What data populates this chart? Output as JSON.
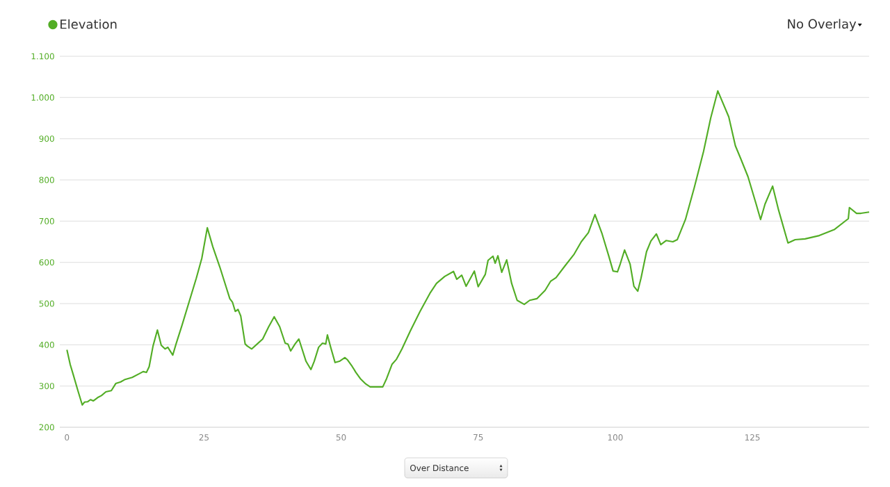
{
  "chart_data": {
    "type": "line",
    "x": [
      0,
      0.6,
      1.1,
      2.0,
      2.8,
      3.2,
      3.8,
      4.3,
      4.8,
      5.6,
      6.3,
      7.1,
      8.1,
      8.9,
      9.8,
      10.6,
      11.9,
      13.2,
      13.9,
      14.5,
      15.0,
      15.7,
      16.5,
      17.2,
      17.9,
      18.4,
      19.3,
      19.9,
      21.0,
      22.3,
      23.6,
      24.6,
      25.6,
      26.6,
      27.9,
      28.9,
      29.7,
      30.2,
      30.7,
      31.2,
      31.7,
      32.5,
      32.9,
      33.7,
      34.7,
      35.7,
      36.8,
      37.8,
      38.8,
      39.8,
      40.3,
      40.8,
      41.6,
      42.3,
      43.6,
      44.5,
      45.1,
      45.9,
      46.6,
      47.2,
      47.5,
      48.1,
      48.9,
      49.7,
      50.7,
      51.2,
      52.0,
      52.7,
      53.5,
      54.5,
      55.3,
      56.3,
      57.6,
      58.3,
      59.3,
      60.1,
      61.1,
      62.6,
      64.4,
      66.2,
      67.4,
      68.9,
      70.5,
      71.1,
      72.0,
      72.8,
      74.3,
      75.0,
      76.3,
      76.8,
      77.7,
      78.1,
      78.6,
      79.3,
      80.2,
      81.1,
      82.1,
      83.4,
      84.4,
      85.7,
      87.2,
      88.2,
      89.2,
      90.8,
      92.5,
      93.8,
      95.1,
      96.3,
      97.6,
      98.8,
      99.6,
      100.4,
      100.9,
      101.7,
      102.2,
      102.7,
      103.4,
      104.1,
      104.7,
      105.7,
      106.5,
      107.5,
      108.3,
      109.3,
      110.5,
      111.3,
      112.8,
      114.4,
      116.1,
      117.4,
      118.7,
      120.7,
      121.9,
      122.9,
      124.2,
      125.7,
      126.5,
      127.3,
      128.7,
      129.8,
      131.5,
      132.8,
      134.6,
      137.2,
      140.0,
      142.5,
      142.7,
      144.0,
      144.8,
      146.3
    ],
    "series": [
      {
        "name": "Elevation",
        "color": "#52ad25",
        "values": [
          388,
          352,
          330,
          289,
          254,
          261,
          262,
          267,
          264,
          272,
          277,
          286,
          289,
          306,
          310,
          316,
          321,
          330,
          335,
          333,
          347,
          397,
          436,
          399,
          390,
          394,
          375,
          402,
          448,
          505,
          562,
          610,
          684,
          638,
          588,
          546,
          512,
          503,
          481,
          486,
          470,
          402,
          397,
          390,
          402,
          414,
          444,
          468,
          444,
          404,
          402,
          385,
          402,
          414,
          360,
          340,
          360,
          394,
          404,
          402,
          424,
          394,
          357,
          360,
          369,
          363,
          348,
          333,
          318,
          305,
          298,
          298,
          298,
          318,
          353,
          365,
          390,
          433,
          481,
          525,
          549,
          566,
          578,
          559,
          569,
          542,
          579,
          541,
          571,
          605,
          615,
          598,
          616,
          576,
          606,
          549,
          508,
          498,
          508,
          512,
          532,
          554,
          563,
          591,
          620,
          650,
          672,
          716,
          669,
          616,
          579,
          577,
          596,
          630,
          613,
          596,
          542,
          530,
          562,
          626,
          652,
          669,
          643,
          653,
          650,
          655,
          704,
          781,
          869,
          950,
          1016,
          953,
          883,
          851,
          808,
          741,
          704,
          741,
          785,
          726,
          647,
          655,
          657,
          665,
          680,
          706,
          733,
          719,
          719,
          722
        ]
      }
    ],
    "xlim": [
      -1.3,
      146.3
    ],
    "ylim": [
      200,
      1100
    ],
    "xticks": [
      0,
      25,
      50,
      75,
      100,
      125
    ],
    "yticks": [
      200,
      300,
      400,
      500,
      600,
      700,
      800,
      900,
      {
        "value": 1000,
        "label": "1.000"
      },
      {
        "value": 1100,
        "label": "1.100"
      }
    ],
    "grid": "y",
    "legend": "top left",
    "line_style": "solid",
    "annotations": [
      "No Overlay",
      "Over Distance"
    ]
  }
}
